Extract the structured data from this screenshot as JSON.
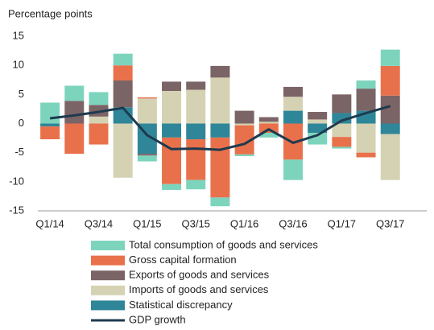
{
  "chart_data": {
    "type": "bar",
    "stacked": true,
    "y_axis_label": "Percentage points",
    "categories": [
      "Q1/14",
      null,
      "Q3/14",
      null,
      "Q1/15",
      null,
      "Q3/15",
      null,
      "Q1/16",
      null,
      "Q3/16",
      null,
      "Q1/17",
      null,
      "Q3/17",
      null
    ],
    "series": [
      {
        "name": "Total consumption of goods and services",
        "color": "#7dd4bd",
        "values": [
          3.6,
          2.6,
          2.2,
          2.0,
          -1.0,
          -1.0,
          -1.6,
          -1.5,
          -0.3,
          -0.8,
          -3.5,
          -2.0,
          -0.3,
          1.4,
          2.8,
          null
        ]
      },
      {
        "name": "Gross capital formation",
        "color": "#e8714b",
        "values": [
          -2.2,
          -5.2,
          -3.6,
          2.6,
          0.2,
          -8.0,
          -7.0,
          -10.3,
          -5.0,
          -1.6,
          -6.2,
          0,
          -1.7,
          -0.8,
          5.1,
          null
        ]
      },
      {
        "name": "Exports of goods and services",
        "color": "#7b6466",
        "values": [
          0,
          3.9,
          2.0,
          4.6,
          -0.3,
          1.6,
          1.4,
          2.0,
          2.2,
          0.8,
          1.7,
          1.3,
          3.2,
          3.8,
          4.8,
          null
        ]
      },
      {
        "name": "Imports of goods and services",
        "color": "#d4d2b3",
        "values": [
          0,
          0,
          1.2,
          -9.3,
          4.3,
          5.6,
          5.8,
          7.9,
          -0.3,
          0.3,
          2.4,
          0.7,
          -2.3,
          -5.0,
          -7.9,
          null
        ]
      },
      {
        "name": "Statistical discrepancy",
        "color": "#2f8698",
        "values": [
          -0.5,
          0,
          0,
          2.8,
          -5.2,
          -2.4,
          -2.7,
          -2.4,
          0,
          0,
          2.2,
          -1.6,
          1.8,
          2.2,
          -1.8,
          null
        ]
      },
      {
        "name": "GDP growth",
        "type": "line",
        "color": "#1e3a4f",
        "values": [
          0.9,
          1.4,
          2.0,
          2.7,
          -2.0,
          -4.4,
          -4.3,
          -4.5,
          -3.5,
          -1.0,
          -3.3,
          -2.0,
          0.5,
          1.8,
          3.0,
          null
        ]
      }
    ],
    "stack_order": [
      "Statistical discrepancy",
      "Imports of goods and services",
      "Exports of goods and services",
      "Gross capital formation",
      "Total consumption of goods and services"
    ],
    "ylim": [
      -15,
      15
    ],
    "yticks": [
      -15,
      -10,
      -5,
      0,
      5,
      10,
      15
    ],
    "grid": false,
    "legend": "bottom"
  }
}
